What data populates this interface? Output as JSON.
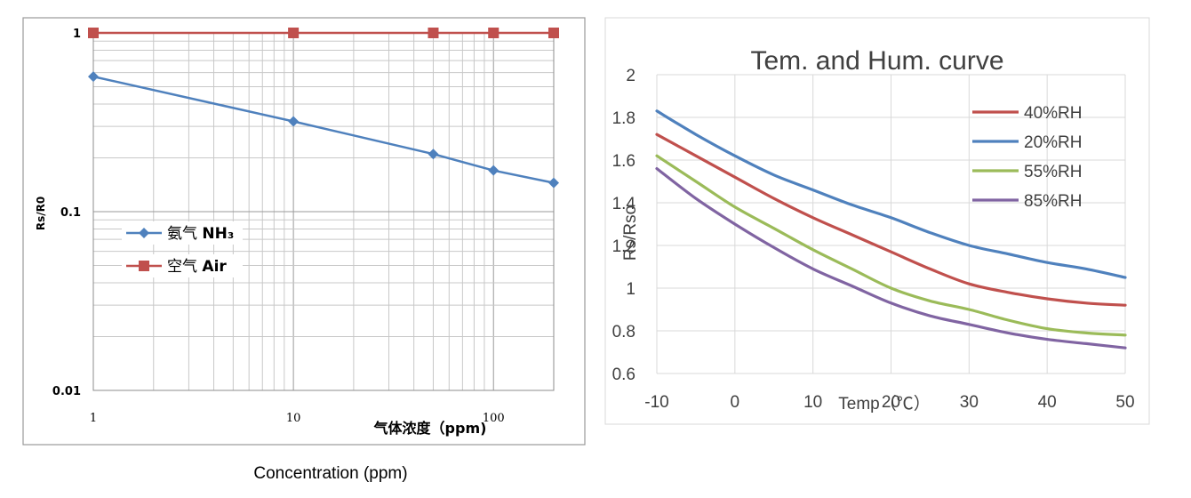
{
  "chart_data": [
    {
      "type": "line",
      "x_scale": "log",
      "y_scale": "log",
      "xlim": [
        1,
        200
      ],
      "ylim": [
        0.01,
        1
      ],
      "x_ticks": [
        "1",
        "10",
        "100"
      ],
      "y_ticks": [
        "1",
        "0.1",
        "0.01"
      ],
      "grid": true,
      "ylabel": "Rs/R0",
      "xlabel": "气体浓度（ppm)",
      "caption": "Concentration (ppm)",
      "legend_position": "center-left",
      "series": [
        {
          "name": "NH3",
          "legend_cn": "氨气",
          "legend_en": "NH₃",
          "color": "#4f81bd",
          "marker": "diamond",
          "x": [
            1,
            10,
            50,
            100,
            200
          ],
          "values": [
            0.57,
            0.32,
            0.21,
            0.17,
            0.145
          ]
        },
        {
          "name": "Air",
          "legend_cn": "空气",
          "legend_en": "Air",
          "color": "#c0504d",
          "marker": "square",
          "x": [
            1,
            10,
            50,
            100,
            200
          ],
          "values": [
            1,
            1,
            1,
            1,
            1
          ]
        }
      ]
    },
    {
      "type": "line",
      "title": "Tem. and Hum. curve",
      "xlabel": "Temp（℃）",
      "ylabel": "Rs/Rso",
      "xlim": [
        -10,
        50
      ],
      "ylim": [
        0.6,
        2
      ],
      "x_ticks": [
        "-10",
        "0",
        "10",
        "20",
        "30",
        "40",
        "50"
      ],
      "y_ticks": [
        "2",
        "1.8",
        "1.6",
        "1.4",
        "1.2",
        "1",
        "0.8",
        "0.6"
      ],
      "grid": true,
      "legend_position": "top-right",
      "x": [
        -10,
        -5,
        0,
        5,
        10,
        15,
        20,
        25,
        30,
        35,
        40,
        45,
        50
      ],
      "series": [
        {
          "name": "40%RH",
          "color": "#c0504d",
          "values": [
            1.72,
            1.62,
            1.52,
            1.42,
            1.33,
            1.25,
            1.17,
            1.09,
            1.02,
            0.98,
            0.95,
            0.93,
            0.92
          ]
        },
        {
          "name": "20%RH",
          "color": "#4f81bd",
          "values": [
            1.83,
            1.72,
            1.62,
            1.53,
            1.46,
            1.39,
            1.33,
            1.26,
            1.2,
            1.16,
            1.12,
            1.09,
            1.05
          ]
        },
        {
          "name": "55%RH",
          "color": "#9bbb59",
          "values": [
            1.62,
            1.5,
            1.38,
            1.28,
            1.18,
            1.09,
            1.0,
            0.94,
            0.9,
            0.85,
            0.81,
            0.79,
            0.78
          ]
        },
        {
          "name": "85%RH",
          "color": "#8064a2",
          "values": [
            1.56,
            1.42,
            1.3,
            1.19,
            1.09,
            1.01,
            0.93,
            0.87,
            0.83,
            0.79,
            0.76,
            0.74,
            0.72
          ]
        }
      ]
    }
  ]
}
